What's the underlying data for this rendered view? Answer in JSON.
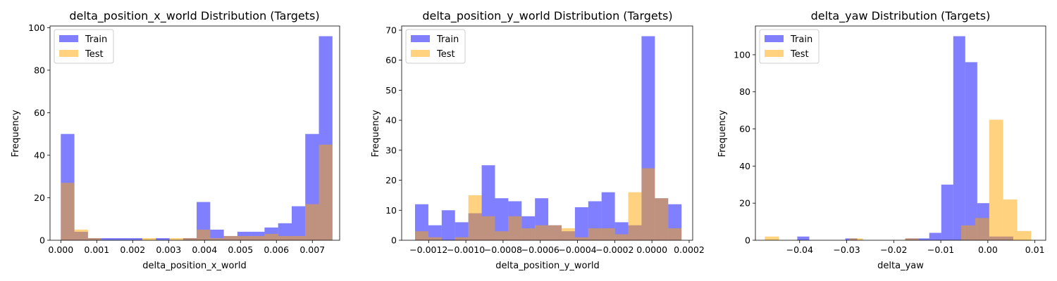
{
  "chart_data": [
    {
      "type": "bar",
      "title": "delta_position_x_world Distribution (Targets)",
      "xlabel": "delta_position_x_world",
      "ylabel": "Frequency",
      "xlim": [
        -0.0003,
        0.00776
      ],
      "ylim": [
        0,
        100.8
      ],
      "xticks": [
        {
          "v": 0.0,
          "label": "0.000"
        },
        {
          "v": 0.001,
          "label": "0.001"
        },
        {
          "v": 0.002,
          "label": "0.002"
        },
        {
          "v": 0.003,
          "label": "0.003"
        },
        {
          "v": 0.004,
          "label": "0.004"
        },
        {
          "v": 0.005,
          "label": "0.005"
        },
        {
          "v": 0.006,
          "label": "0.006"
        },
        {
          "v": 0.007,
          "label": "0.007"
        }
      ],
      "yticks": [
        {
          "v": 0,
          "label": "0"
        },
        {
          "v": 20,
          "label": "20"
        },
        {
          "v": 40,
          "label": "40"
        },
        {
          "v": 60,
          "label": "60"
        },
        {
          "v": 80,
          "label": "80"
        },
        {
          "v": 100,
          "label": "100"
        }
      ],
      "legend_position": "upper-left",
      "grid": false,
      "series": [
        {
          "name": "Train",
          "color": "#0000ff",
          "bin_start": 0.0,
          "bin_width": 0.000378,
          "values": [
            50,
            4,
            1,
            1,
            1,
            1,
            0,
            1,
            0,
            1,
            18,
            5,
            2,
            4,
            4,
            6,
            8,
            16,
            50,
            96
          ]
        },
        {
          "name": "Test",
          "color": "#ffa500",
          "bin_start": 0.0,
          "bin_width": 0.000378,
          "values": [
            27,
            5,
            1,
            0,
            0,
            0,
            1,
            0,
            1,
            1,
            5,
            1,
            2,
            2,
            2,
            3,
            2,
            2,
            17,
            45
          ]
        }
      ]
    },
    {
      "type": "bar",
      "title": "delta_position_y_world Distribution (Targets)",
      "xlabel": "delta_position_y_world",
      "ylabel": "Frequency",
      "xlim": [
        -0.001345,
        0.000219
      ],
      "ylim": [
        0,
        71.4
      ],
      "xticks": [
        {
          "v": -0.0012,
          "label": "−0.0012"
        },
        {
          "v": -0.001,
          "label": "−0.0010"
        },
        {
          "v": -0.0008,
          "label": "−0.0008"
        },
        {
          "v": -0.0006,
          "label": "−0.0006"
        },
        {
          "v": -0.0004,
          "label": "−0.0004"
        },
        {
          "v": -0.0002,
          "label": "−0.0002"
        },
        {
          "v": 0.0,
          "label": "0.0000"
        },
        {
          "v": 0.0002,
          "label": "0.0002"
        }
      ],
      "yticks": [
        {
          "v": 0,
          "label": "0"
        },
        {
          "v": 10,
          "label": "10"
        },
        {
          "v": 20,
          "label": "20"
        },
        {
          "v": 30,
          "label": "30"
        },
        {
          "v": 40,
          "label": "40"
        },
        {
          "v": 50,
          "label": "50"
        },
        {
          "v": 60,
          "label": "60"
        },
        {
          "v": 70,
          "label": "70"
        }
      ],
      "legend_position": "upper-left",
      "grid": false,
      "series": [
        {
          "name": "Train",
          "color": "#0000ff",
          "bin_start": -0.001273,
          "bin_width": 7.16e-05,
          "values": [
            12,
            5,
            10,
            6,
            9,
            25,
            14,
            13,
            8,
            14,
            5,
            3,
            11,
            13,
            16,
            6,
            5,
            68,
            14,
            12
          ]
        },
        {
          "name": "Test",
          "color": "#ffa500",
          "bin_start": -0.001273,
          "bin_width": 7.16e-05,
          "values": [
            3,
            1,
            0,
            1,
            15,
            8,
            3,
            8,
            4,
            5,
            5,
            4,
            1,
            4,
            4,
            2,
            16,
            24,
            14,
            4
          ]
        }
      ]
    },
    {
      "type": "bar",
      "title": "delta_yaw Distribution (Targets)",
      "xlabel": "delta_yaw",
      "ylabel": "Frequency",
      "xlim": [
        -0.0494,
        0.0123
      ],
      "ylim": [
        0,
        115.5
      ],
      "xticks": [
        {
          "v": -0.04,
          "label": "−0.04"
        },
        {
          "v": -0.03,
          "label": "−0.03"
        },
        {
          "v": -0.02,
          "label": "−0.02"
        },
        {
          "v": -0.01,
          "label": "−0.01"
        },
        {
          "v": 0.0,
          "label": "0.00"
        },
        {
          "v": 0.01,
          "label": "0.01"
        }
      ],
      "yticks": [
        {
          "v": 0,
          "label": "0"
        },
        {
          "v": 20,
          "label": "20"
        },
        {
          "v": 40,
          "label": "40"
        },
        {
          "v": 60,
          "label": "60"
        },
        {
          "v": 80,
          "label": "80"
        },
        {
          "v": 100,
          "label": "100"
        }
      ],
      "legend_position": "upper-left",
      "grid": false,
      "series": [
        {
          "name": "Train",
          "color": "#0000ff",
          "bin_start": -0.0405,
          "bin_width": 0.00255,
          "values": [
            2,
            0,
            0,
            0,
            1,
            0,
            0,
            0,
            0,
            1,
            1,
            4,
            30,
            110,
            96,
            20,
            2,
            2
          ]
        },
        {
          "name": "Test",
          "color": "#ffa500",
          "bin_start": -0.0474,
          "bin_width": 0.00298,
          "values": [
            2,
            0,
            0,
            0,
            0,
            0,
            1,
            0,
            0,
            0,
            1,
            0,
            0,
            0,
            8,
            12,
            65,
            22,
            5
          ]
        }
      ]
    }
  ]
}
